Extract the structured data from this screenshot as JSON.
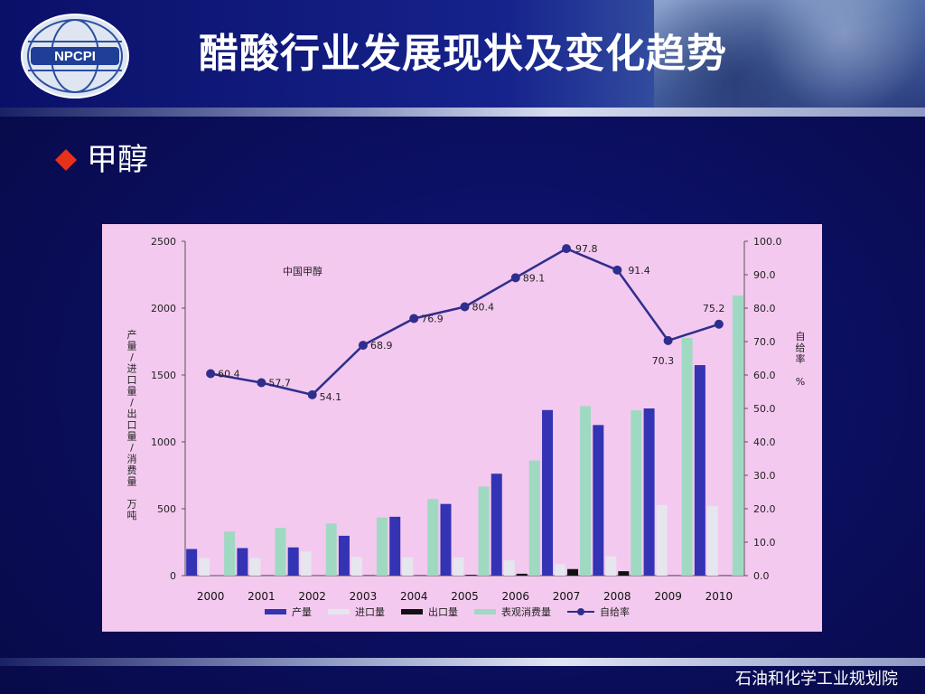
{
  "slide": {
    "title": "醋酸行业发展现状及变化趋势",
    "subtitle": "甲醇",
    "footer": "石油和化学工业规划院",
    "logo_text": "NPCPI"
  },
  "colors": {
    "background": "#0b0f5c",
    "production": "#3333b3",
    "import": "#e6e6ee",
    "export": "#111111",
    "consumption": "#9fd9c2",
    "ratio_line": "#2e2e8c",
    "chart_bg": "#f4c9ef",
    "bullet": "#e8311a"
  },
  "chart_data": {
    "type": "bar",
    "title": "中国甲醇",
    "ylabel": "产量/进口量/出口量/消费量 万吨",
    "y2label": "自给率 %",
    "ylim": [
      0,
      2500
    ],
    "y2lim": [
      0,
      100
    ],
    "yticks": [
      "0",
      "500",
      "1000",
      "1500",
      "2000",
      "2500"
    ],
    "y2ticks": [
      "0.0",
      "10.0",
      "20.0",
      "30.0",
      "40.0",
      "50.0",
      "60.0",
      "70.0",
      "80.0",
      "90.0",
      "100.0"
    ],
    "categories": [
      "2000",
      "2001",
      "2002",
      "2003",
      "2004",
      "2005",
      "2006",
      "2007",
      "2008",
      "2009",
      "2010"
    ],
    "series": [
      {
        "name": "产量",
        "type": "bar",
        "values": [
          199,
          206,
          211,
          298,
          440,
          536,
          762,
          1238,
          1126,
          1250,
          1574
        ]
      },
      {
        "name": "进口量",
        "type": "bar",
        "values": [
          131,
          132,
          180,
          140,
          136,
          136,
          113,
          85,
          143,
          528,
          520
        ]
      },
      {
        "name": "出口量",
        "type": "bar",
        "values": [
          0,
          2,
          1,
          3,
          3,
          6,
          14,
          49,
          33,
          2,
          2
        ]
      },
      {
        "name": "表观消费量",
        "type": "bar",
        "values": [
          330,
          357,
          390,
          435,
          573,
          666,
          861,
          1267,
          1236,
          1777,
          2094
        ]
      },
      {
        "name": "自给率",
        "type": "line",
        "axis": "right",
        "values": [
          60.4,
          57.7,
          54.1,
          68.9,
          76.9,
          80.4,
          89.1,
          97.8,
          91.4,
          70.3,
          75.2
        ]
      }
    ],
    "legend": [
      "产量",
      "进口量",
      "出口量",
      "表观消费量",
      "自给率"
    ],
    "legend_position": "bottom",
    "grid": false
  }
}
